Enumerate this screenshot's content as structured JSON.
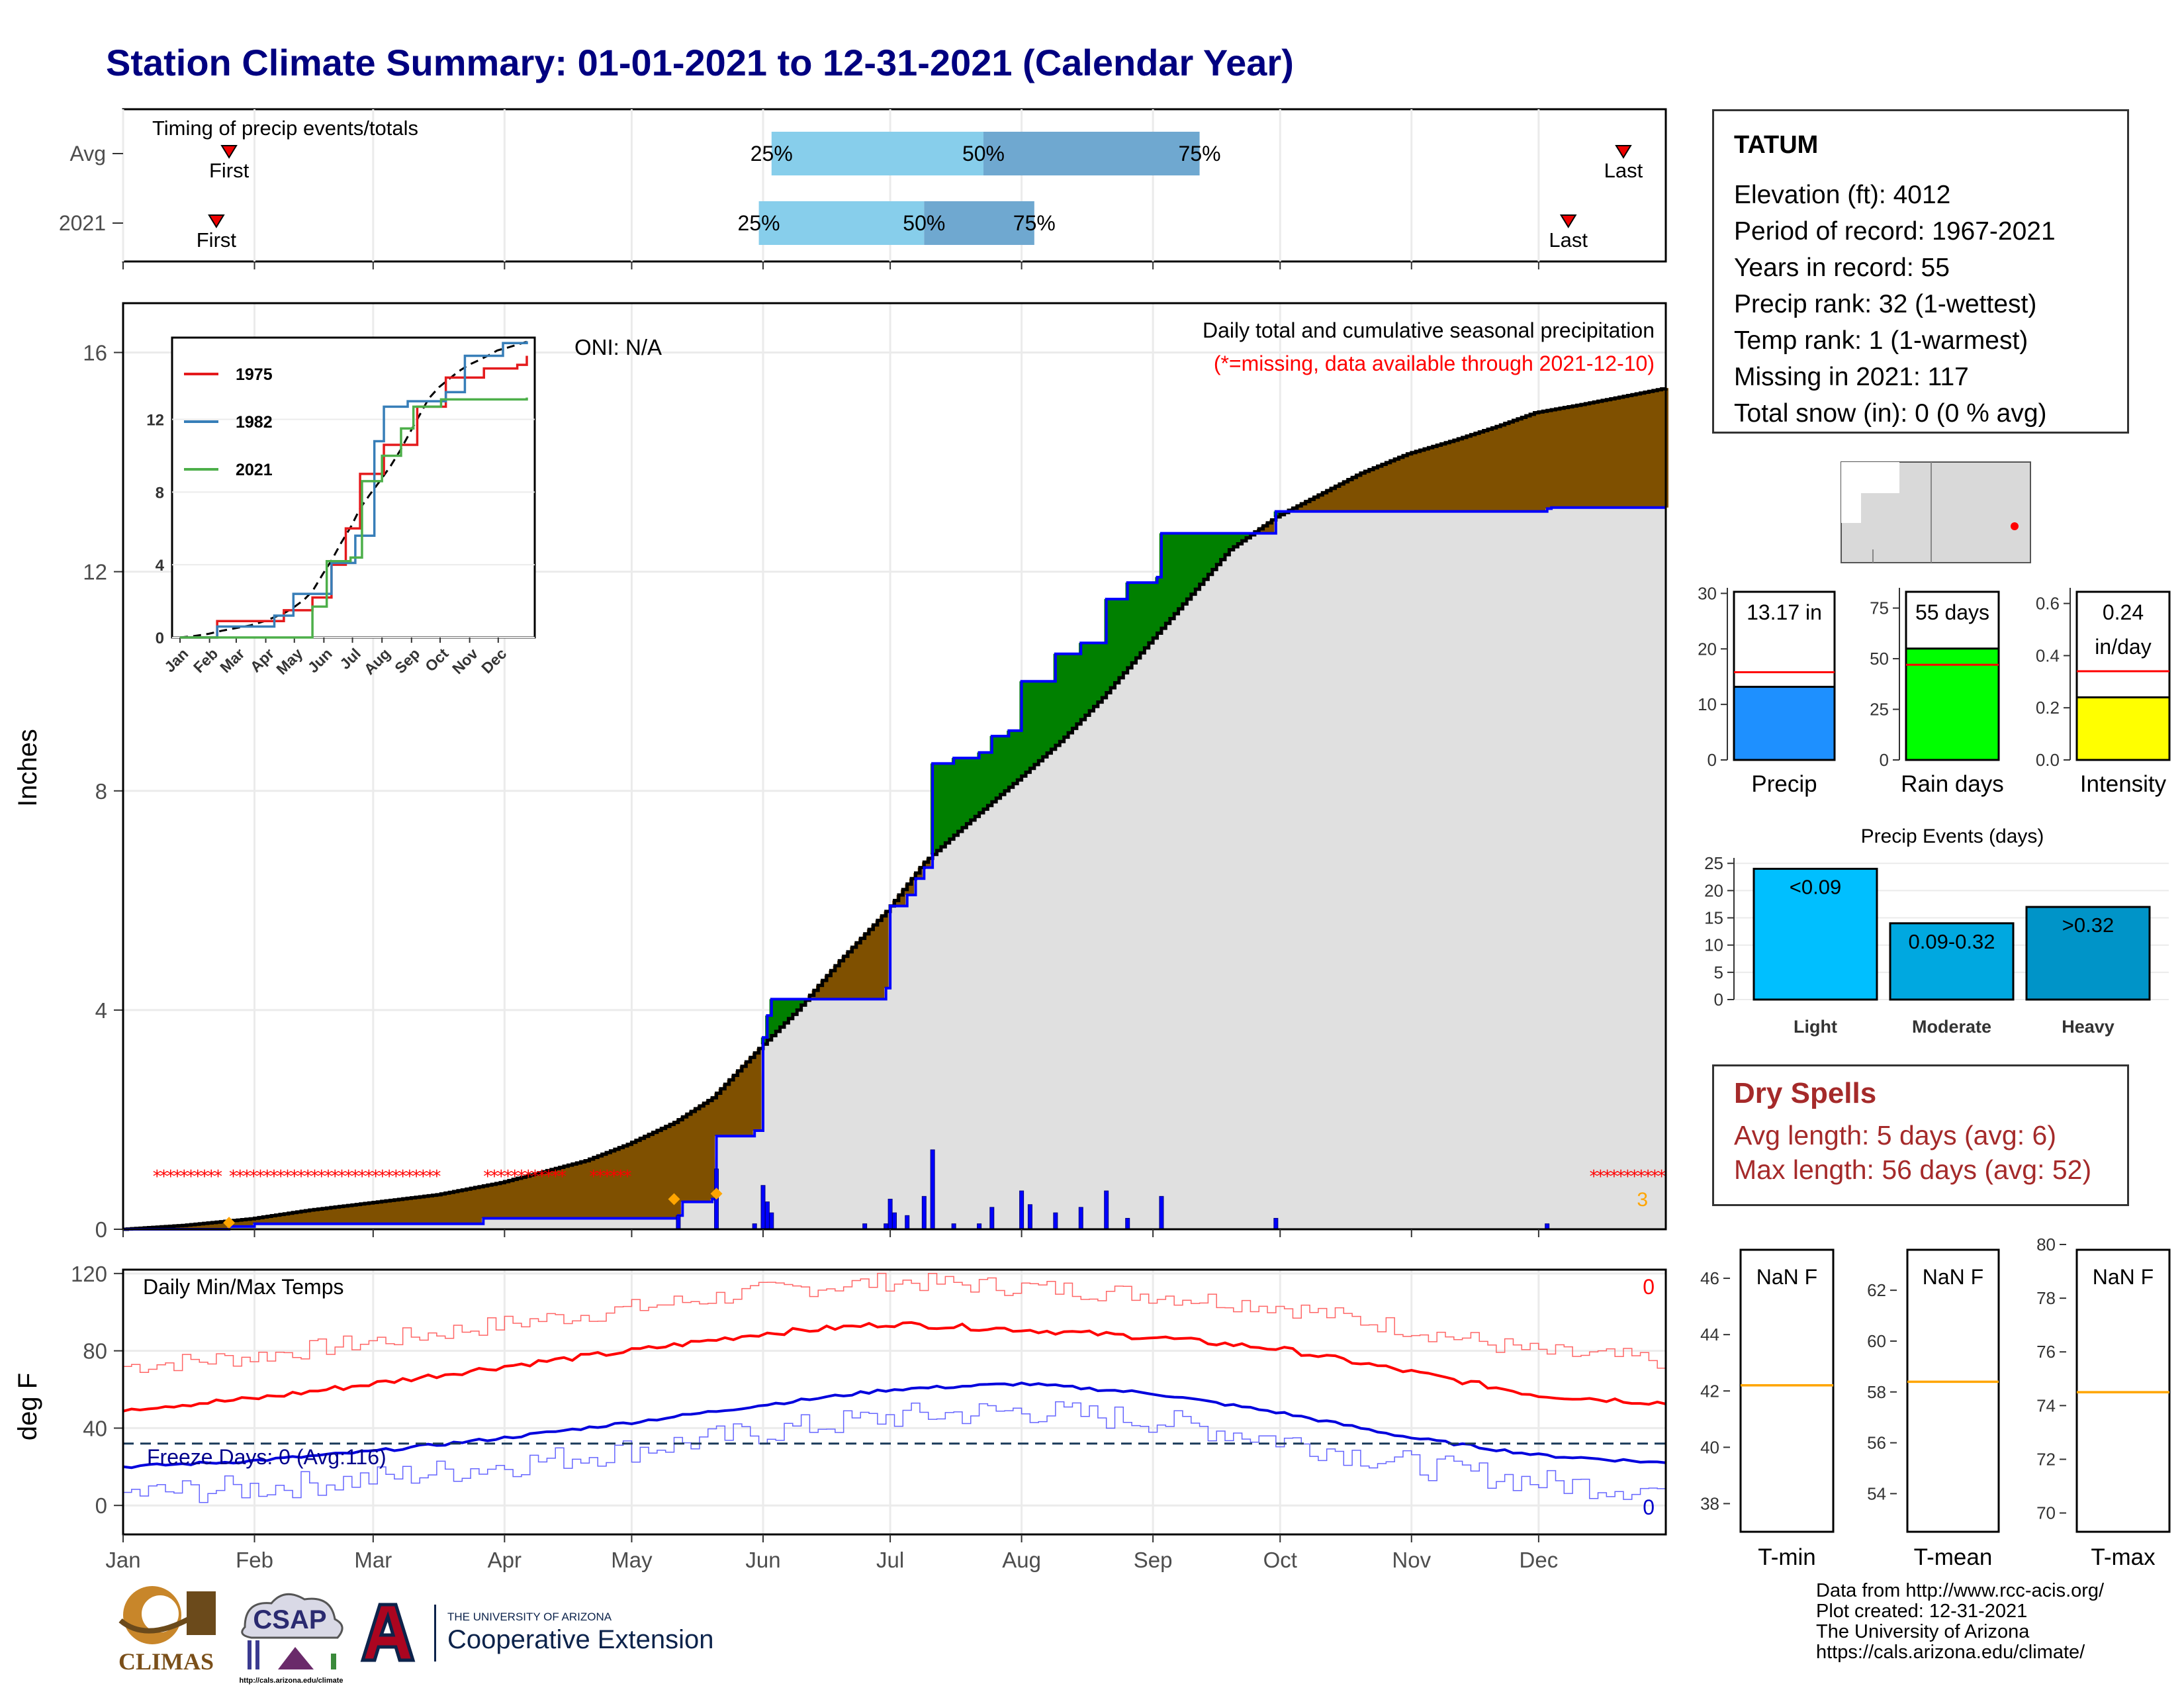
{
  "title": "Station Climate Summary: 01-01-2021 to 12-31-2021 (Calendar Year)",
  "months": [
    "Jan",
    "Feb",
    "Mar",
    "Apr",
    "May",
    "Jun",
    "Jul",
    "Aug",
    "Sep",
    "Oct",
    "Nov",
    "Dec"
  ],
  "timing_panel": {
    "label": "Timing of precip events/totals",
    "rows": [
      {
        "name": "Avg",
        "first_day": 26,
        "p25_day": 154,
        "p50_day": 204,
        "p75_day": 255,
        "last_day": 355
      },
      {
        "name": "2021",
        "first_day": 23,
        "p25_day": 151,
        "p50_day": 190,
        "p75_day": 216,
        "last_day": 342
      }
    ],
    "first_label": "First",
    "last_label": "Last",
    "p25_label": "25%",
    "p50_label": "50%",
    "p75_label": "75%"
  },
  "colors": {
    "above_avg": "#008000",
    "below_avg": "#7f5000",
    "cumulative_line": "#0000ff",
    "daily_bar": "#0000ff",
    "missing": "#ff0000",
    "normal_fill": "#e0e0e0",
    "timing_light": "#87ceeb",
    "timing_dark": "#6fa8d0",
    "title": "#000080"
  },
  "chart_data": [
    {
      "type": "area",
      "name": "main_precip",
      "title": "Daily total and cumulative seasonal precipitation",
      "subtitle": "(*=missing, data available through 2021-12-10)",
      "ylabel": "Inches",
      "ylim": [
        0,
        16.9
      ],
      "yticks": [
        0,
        4,
        8,
        12,
        16
      ],
      "oni": "ONI: N/A",
      "corner_count": "3",
      "normal_cumulative": [
        [
          1,
          0.0
        ],
        [
          15,
          0.07
        ],
        [
          31,
          0.19
        ],
        [
          45,
          0.35
        ],
        [
          59,
          0.48
        ],
        [
          75,
          0.63
        ],
        [
          90,
          0.85
        ],
        [
          100,
          1.05
        ],
        [
          110,
          1.25
        ],
        [
          120,
          1.55
        ],
        [
          131,
          1.95
        ],
        [
          140,
          2.4
        ],
        [
          151,
          3.3
        ],
        [
          160,
          4.0
        ],
        [
          170,
          4.9
        ],
        [
          181,
          5.8
        ],
        [
          190,
          6.7
        ],
        [
          200,
          7.4
        ],
        [
          212,
          8.2
        ],
        [
          222,
          8.9
        ],
        [
          232,
          9.7
        ],
        [
          243,
          10.7
        ],
        [
          252,
          11.5
        ],
        [
          262,
          12.4
        ],
        [
          273,
          13.0
        ],
        [
          283,
          13.4
        ],
        [
          293,
          13.8
        ],
        [
          304,
          14.15
        ],
        [
          315,
          14.4
        ],
        [
          325,
          14.65
        ],
        [
          334,
          14.9
        ],
        [
          345,
          15.05
        ],
        [
          355,
          15.2
        ],
        [
          365,
          15.35
        ]
      ],
      "observed_cumulative": [
        [
          1,
          0.0
        ],
        [
          26,
          0.05
        ],
        [
          32,
          0.1
        ],
        [
          85,
          0.1
        ],
        [
          86,
          0.2
        ],
        [
          132,
          0.25
        ],
        [
          133,
          0.5
        ],
        [
          140,
          0.55
        ],
        [
          141,
          1.7
        ],
        [
          150,
          1.8
        ],
        [
          152,
          3.5
        ],
        [
          153,
          3.9
        ],
        [
          154,
          4.2
        ],
        [
          181,
          4.4
        ],
        [
          182,
          5.9
        ],
        [
          186,
          6.1
        ],
        [
          188,
          6.4
        ],
        [
          190,
          6.6
        ],
        [
          192,
          8.5
        ],
        [
          197,
          8.6
        ],
        [
          203,
          8.7
        ],
        [
          206,
          9.0
        ],
        [
          210,
          9.1
        ],
        [
          213,
          10.0
        ],
        [
          221,
          10.5
        ],
        [
          227,
          10.7
        ],
        [
          233,
          11.5
        ],
        [
          238,
          11.8
        ],
        [
          245,
          11.9
        ],
        [
          246,
          12.7
        ],
        [
          273,
          13.1
        ],
        [
          337,
          13.15
        ],
        [
          338,
          13.17
        ],
        [
          365,
          13.17
        ]
      ],
      "daily_bars": [
        [
          132,
          0.25
        ],
        [
          141,
          1.1
        ],
        [
          150,
          0.1
        ],
        [
          152,
          0.8
        ],
        [
          153,
          0.5
        ],
        [
          154,
          0.3
        ],
        [
          176,
          0.1
        ],
        [
          181,
          0.1
        ],
        [
          182,
          0.55
        ],
        [
          183,
          0.3
        ],
        [
          186,
          0.25
        ],
        [
          190,
          0.6
        ],
        [
          192,
          1.45
        ],
        [
          197,
          0.1
        ],
        [
          203,
          0.1
        ],
        [
          206,
          0.4
        ],
        [
          213,
          0.7
        ],
        [
          215,
          0.45
        ],
        [
          221,
          0.3
        ],
        [
          227,
          0.4
        ],
        [
          233,
          0.7
        ],
        [
          238,
          0.2
        ],
        [
          246,
          0.6
        ],
        [
          273,
          0.2
        ],
        [
          337,
          0.1
        ]
      ],
      "missing_ranges": [
        [
          9,
          24
        ],
        [
          27,
          75
        ],
        [
          87,
          105
        ],
        [
          112,
          120
        ],
        [
          348,
          365
        ]
      ]
    },
    {
      "type": "line",
      "name": "inset_cumulative",
      "series": [
        {
          "name": "1975",
          "color": "#e41a1c"
        },
        {
          "name": "1982",
          "color": "#377eb8"
        },
        {
          "name": "2021",
          "color": "#4daf4a"
        }
      ],
      "xlabels": [
        "Jan",
        "Feb",
        "Mar",
        "Apr",
        "May",
        "Jun",
        "Jul",
        "Aug",
        "Sep",
        "Oct",
        "Nov",
        "Dec"
      ],
      "yticks": [
        0,
        4,
        8,
        12
      ],
      "ylim": [
        0,
        16.5
      ]
    },
    {
      "type": "bar",
      "name": "precip_total",
      "categories": [
        "Precip"
      ],
      "values": [
        13.17
      ],
      "avg": 15.8,
      "ylim": [
        0,
        31
      ],
      "yticks": [
        0,
        10,
        20,
        30
      ],
      "label": "13.17 in",
      "color": "#1e90ff"
    },
    {
      "type": "bar",
      "name": "rain_days",
      "categories": [
        "Rain days"
      ],
      "values": [
        55
      ],
      "avg": 47,
      "ylim": [
        0,
        85
      ],
      "yticks": [
        0,
        25,
        50,
        75
      ],
      "label": "55 days",
      "color": "#00ff00"
    },
    {
      "type": "bar",
      "name": "intensity",
      "categories": [
        "Intensity"
      ],
      "values": [
        0.24
      ],
      "avg": 0.34,
      "ylim": [
        0,
        0.66
      ],
      "yticks": [
        "0.0",
        "0.2",
        "0.4",
        "0.6"
      ],
      "label": "0.24",
      "label2": "in/day",
      "color": "#ffff00"
    },
    {
      "type": "bar",
      "name": "precip_events",
      "title": "Precip Events (days)",
      "categories": [
        "Light",
        "Moderate",
        "Heavy"
      ],
      "values": [
        24,
        14,
        17
      ],
      "labels": [
        "<0.09",
        "0.09-0.32",
        ">0.32"
      ],
      "colors": [
        "#00bfff",
        "#00a8e0",
        "#0094c8"
      ],
      "ylim": [
        0,
        26
      ],
      "yticks": [
        0,
        5,
        10,
        15,
        20,
        25
      ]
    },
    {
      "type": "line",
      "name": "daily_temps",
      "title": "Daily Min/Max Temps",
      "ylabel": "deg F",
      "ylim": [
        -15,
        122
      ],
      "yticks": [
        0,
        40,
        80,
        120
      ],
      "freeze_line": 32,
      "freeze_label": "Freeze Days: 0 (Avg:116)",
      "max_count": "0",
      "min_count": "0",
      "avg_max_points": [
        [
          1,
          50
        ],
        [
          31,
          55
        ],
        [
          60,
          63
        ],
        [
          91,
          72
        ],
        [
          121,
          80
        ],
        [
          152,
          89
        ],
        [
          182,
          94
        ],
        [
          213,
          91
        ],
        [
          244,
          87
        ],
        [
          274,
          81
        ],
        [
          305,
          69
        ],
        [
          335,
          57
        ],
        [
          365,
          53
        ]
      ],
      "avg_min_points": [
        [
          1,
          20
        ],
        [
          31,
          23
        ],
        [
          60,
          28
        ],
        [
          91,
          35
        ],
        [
          121,
          43
        ],
        [
          152,
          52
        ],
        [
          182,
          60
        ],
        [
          213,
          63
        ],
        [
          244,
          58
        ],
        [
          274,
          48
        ],
        [
          305,
          35
        ],
        [
          335,
          26
        ],
        [
          365,
          22
        ]
      ]
    },
    {
      "type": "bar",
      "name": "tmin_box",
      "label": "NaN F",
      "xlabel": "T-min",
      "avg": 42.2,
      "ylim": [
        37,
        47.2
      ],
      "yticks": [
        38,
        40,
        42,
        44,
        46
      ]
    },
    {
      "type": "bar",
      "name": "tmean_box",
      "label": "NaN F",
      "xlabel": "T-mean",
      "avg": 58.4,
      "ylim": [
        52.5,
        63.8
      ],
      "yticks": [
        54,
        56,
        58,
        60,
        62
      ]
    },
    {
      "type": "bar",
      "name": "tmax_box",
      "label": "NaN F",
      "xlabel": "T-max",
      "avg": 74.5,
      "ylim": [
        69.3,
        80
      ],
      "yticks": [
        70,
        72,
        74,
        76,
        78,
        80
      ]
    }
  ],
  "station": {
    "name": "TATUM",
    "lines": [
      "Elevation (ft): 4012",
      "Period of record: 1967-2021",
      "Years in record: 55",
      "Precip rank: 32 (1-wettest)",
      "Temp rank: 1 (1-warmest)",
      "Missing in 2021: 117",
      "Total snow (in): 0 (0 % avg)"
    ]
  },
  "dry_spells": {
    "heading": "Dry Spells",
    "avg_length": "Avg length: 5 days (avg: 6)",
    "max_length": "Max length: 56 days (avg: 52)"
  },
  "footer": {
    "lines": [
      "Data from http://www.rcc-acis.org/",
      "Plot created: 12-31-2021",
      "The University of Arizona",
      "https://cals.arizona.edu/climate/"
    ],
    "logos": {
      "climas": "CLIMAS",
      "csap": "CSAP",
      "csap_url": "http://cals.arizona.edu/climate",
      "ua_small": "THE UNIVERSITY OF ARIZONA",
      "ua_big": "Cooperative Extension"
    }
  }
}
